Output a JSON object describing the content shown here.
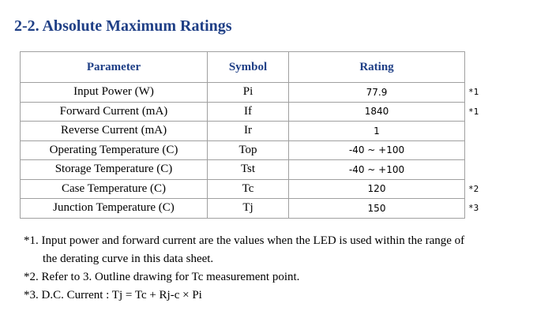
{
  "header": {
    "title": "2-2. Absolute Maximum Ratings"
  },
  "table": {
    "columns": [
      "Parameter",
      "Symbol",
      "Rating"
    ],
    "rows": [
      {
        "parameter": "Input Power  (W)",
        "symbol": "Pi",
        "rating": "77.9",
        "note": "*1"
      },
      {
        "parameter": "Forward Current  (mA)",
        "symbol": "If",
        "rating": "1840",
        "note": "*1"
      },
      {
        "parameter": "Reverse Current  (mA)",
        "symbol": "Ir",
        "rating": "1"
      },
      {
        "parameter": "Operating Temperature  (C)",
        "symbol": "Top",
        "rating": "-40 ~ +100"
      },
      {
        "parameter": "Storage Temperature  (C)",
        "symbol": "Tst",
        "rating": "-40 ~ +100"
      },
      {
        "parameter": "Case Temperature  (C)",
        "symbol": "Tc",
        "rating": "120",
        "note": "*2"
      },
      {
        "parameter": "Junction Temperature  (C)",
        "symbol": "Tj",
        "rating": "150",
        "note": "*3"
      }
    ]
  },
  "notes": [
    {
      "lines": [
        "*1. Input power and forward current are the values when the LED is used within the range of",
        "the derating curve in this data sheet."
      ]
    },
    {
      "lines": [
        "*2. Refer to 3. Outline drawing for Tc measurement point."
      ]
    },
    {
      "lines": [
        "*3. D.C. Current : Tj = Tc + Rj-c  ×  Pi"
      ]
    }
  ]
}
